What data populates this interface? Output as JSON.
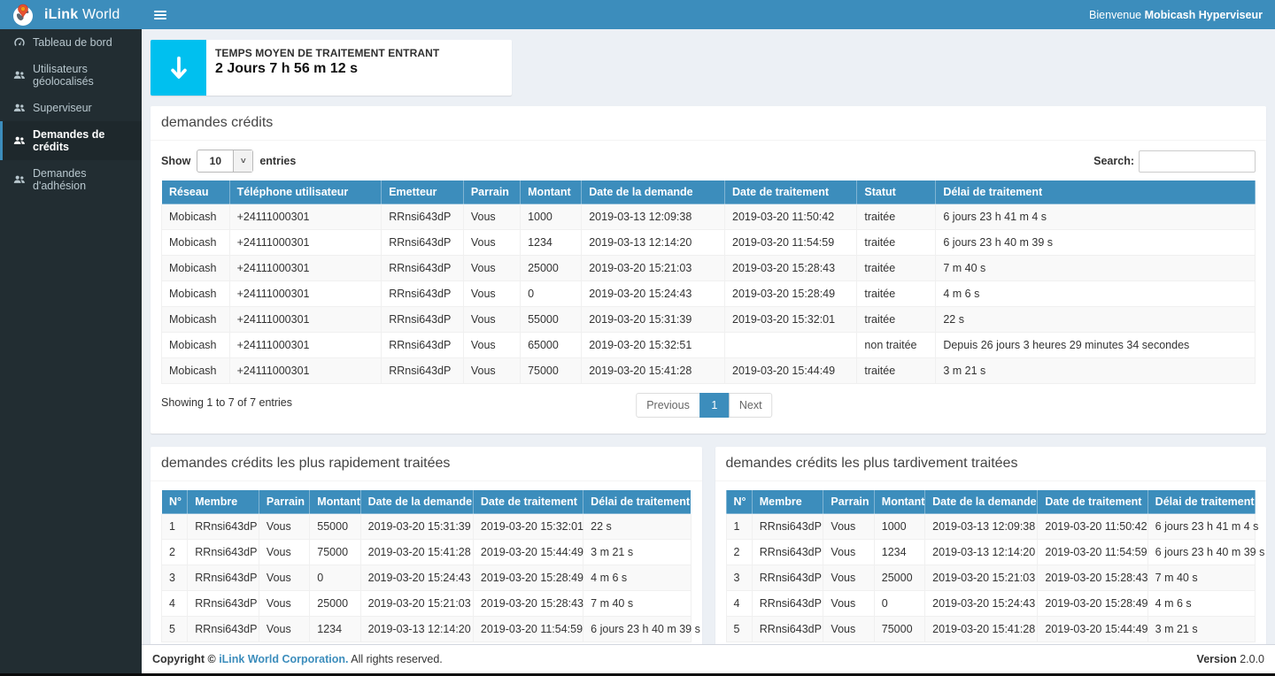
{
  "colors": {
    "accent": "#3c8dbc",
    "sidebar_bg": "#222d32",
    "stat_icon_bg": "#00c0ef",
    "page_bg": "#ecf0f5"
  },
  "header": {
    "brand_bold": "iLink",
    "brand_regular": "World",
    "welcome_prefix": "Bienvenue ",
    "welcome_user": "Mobicash Hyperviseur"
  },
  "sidebar": {
    "items": [
      {
        "label": "Tableau de bord",
        "icon": "dashboard-icon",
        "active": false
      },
      {
        "label": "Utilisateurs géolocalisés",
        "icon": "users-icon",
        "active": false
      },
      {
        "label": "Superviseur",
        "icon": "users-icon",
        "active": false
      },
      {
        "label": "Demandes de crédits",
        "icon": "users-icon",
        "active": true
      },
      {
        "label": "Demandes d'adhésion",
        "icon": "users-icon",
        "active": false
      }
    ]
  },
  "stat_box": {
    "icon": "arrow-down-icon",
    "label": "TEMPS MOYEN DE TRAITEMENT ENTRANT",
    "value": "2 Jours 7 h 56 m 12 s"
  },
  "credits_panel": {
    "title": "demandes crédits",
    "show_label": "Show",
    "page_size": "10",
    "entries_label": "entries",
    "search_label": "Search:",
    "search_value": "",
    "columns": [
      "Réseau",
      "Téléphone utilisateur",
      "Emetteur",
      "Parrain",
      "Montant",
      "Date de la demande",
      "Date de traitement",
      "Statut",
      "Délai de traitement"
    ],
    "rows": [
      [
        "Mobicash",
        "+24111000301",
        "RRnsi643dP",
        "Vous",
        "1000",
        "2019-03-13 12:09:38",
        "2019-03-20 11:50:42",
        "traitée",
        "6 jours 23 h 41 m 4 s"
      ],
      [
        "Mobicash",
        "+24111000301",
        "RRnsi643dP",
        "Vous",
        "1234",
        "2019-03-13 12:14:20",
        "2019-03-20 11:54:59",
        "traitée",
        "6 jours 23 h 40 m 39 s"
      ],
      [
        "Mobicash",
        "+24111000301",
        "RRnsi643dP",
        "Vous",
        "25000",
        "2019-03-20 15:21:03",
        "2019-03-20 15:28:43",
        "traitée",
        "7 m 40 s"
      ],
      [
        "Mobicash",
        "+24111000301",
        "RRnsi643dP",
        "Vous",
        "0",
        "2019-03-20 15:24:43",
        "2019-03-20 15:28:49",
        "traitée",
        "4 m 6 s"
      ],
      [
        "Mobicash",
        "+24111000301",
        "RRnsi643dP",
        "Vous",
        "55000",
        "2019-03-20 15:31:39",
        "2019-03-20 15:32:01",
        "traitée",
        "22 s"
      ],
      [
        "Mobicash",
        "+24111000301",
        "RRnsi643dP",
        "Vous",
        "65000",
        "2019-03-20 15:32:51",
        "",
        "non traitée",
        "Depuis 26 jours 3 heures 29 minutes 34 secondes"
      ],
      [
        "Mobicash",
        "+24111000301",
        "RRnsi643dP",
        "Vous",
        "75000",
        "2019-03-20 15:41:28",
        "2019-03-20 15:44:49",
        "traitée",
        "3 m 21 s"
      ]
    ],
    "summary": "Showing 1 to 7 of 7 entries",
    "pagination": {
      "previous": "Previous",
      "page": "1",
      "next": "Next"
    }
  },
  "fastest_panel": {
    "title": "demandes crédits les plus rapidement traitées",
    "columns": [
      "N°",
      "Membre",
      "Parrain",
      "Montant",
      "Date de la demande",
      "Date de traitement",
      "Délai de traitement"
    ],
    "rows": [
      [
        "1",
        "RRnsi643dP",
        "Vous",
        "55000",
        "2019-03-20 15:31:39",
        "2019-03-20 15:32:01",
        "22 s"
      ],
      [
        "2",
        "RRnsi643dP",
        "Vous",
        "75000",
        "2019-03-20 15:41:28",
        "2019-03-20 15:44:49",
        "3 m 21 s"
      ],
      [
        "3",
        "RRnsi643dP",
        "Vous",
        "0",
        "2019-03-20 15:24:43",
        "2019-03-20 15:28:49",
        "4 m 6 s"
      ],
      [
        "4",
        "RRnsi643dP",
        "Vous",
        "25000",
        "2019-03-20 15:21:03",
        "2019-03-20 15:28:43",
        "7 m 40 s"
      ],
      [
        "5",
        "RRnsi643dP",
        "Vous",
        "1234",
        "2019-03-13 12:14:20",
        "2019-03-20 11:54:59",
        "6 jours 23 h 40 m 39 s"
      ]
    ]
  },
  "slowest_panel": {
    "title": "demandes crédits les plus tardivement traitées",
    "columns": [
      "N°",
      "Membre",
      "Parrain",
      "Montant",
      "Date de la demande",
      "Date de traitement",
      "Délai de traitement"
    ],
    "rows": [
      [
        "1",
        "RRnsi643dP",
        "Vous",
        "1000",
        "2019-03-13 12:09:38",
        "2019-03-20 11:50:42",
        "6 jours 23 h 41 m 4 s"
      ],
      [
        "2",
        "RRnsi643dP",
        "Vous",
        "1234",
        "2019-03-13 12:14:20",
        "2019-03-20 11:54:59",
        "6 jours 23 h 40 m 39 s"
      ],
      [
        "3",
        "RRnsi643dP",
        "Vous",
        "25000",
        "2019-03-20 15:21:03",
        "2019-03-20 15:28:43",
        "7 m 40 s"
      ],
      [
        "4",
        "RRnsi643dP",
        "Vous",
        "0",
        "2019-03-20 15:24:43",
        "2019-03-20 15:28:49",
        "4 m 6 s"
      ],
      [
        "5",
        "RRnsi643dP",
        "Vous",
        "75000",
        "2019-03-20 15:41:28",
        "2019-03-20 15:44:49",
        "3 m 21 s"
      ]
    ]
  },
  "footer": {
    "copyright_prefix": "Copyright © ",
    "company_link": "iLink World Corporation.",
    "rights": " All rights reserved.",
    "version_label": "Version",
    "version_value": " 2.0.0"
  }
}
